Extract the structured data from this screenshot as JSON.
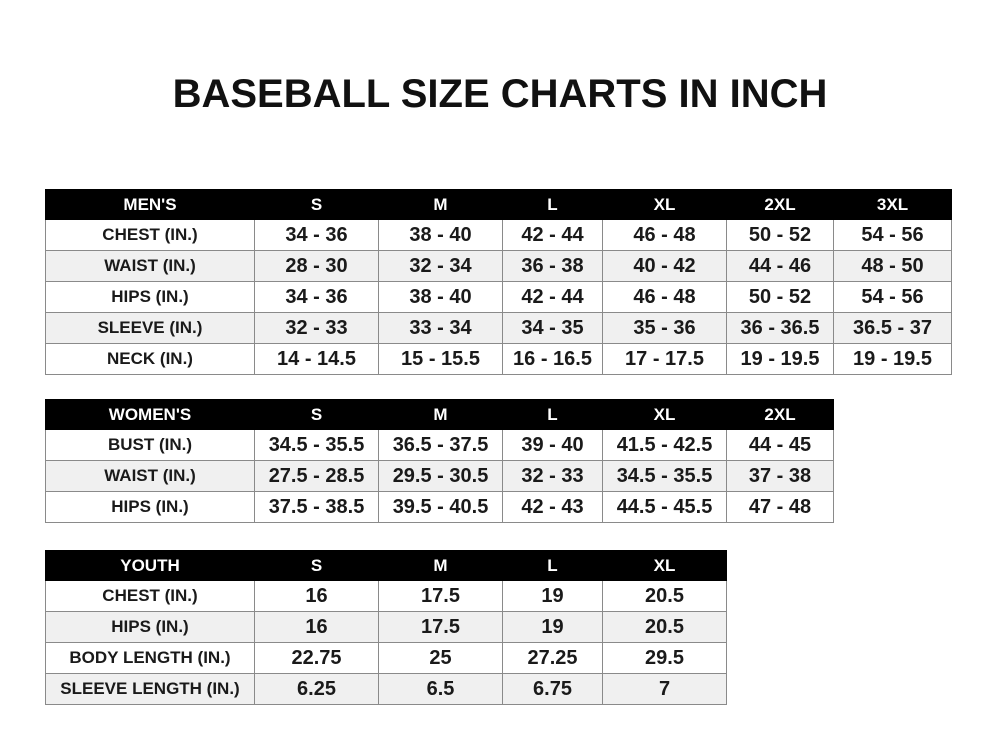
{
  "title": "BASEBALL SIZE CHARTS IN INCH",
  "mens": {
    "header": [
      "MEN'S",
      "S",
      "M",
      "L",
      "XL",
      "2XL",
      "3XL"
    ],
    "rows": [
      [
        "CHEST (IN.)",
        "34 - 36",
        "38 - 40",
        "42 - 44",
        "46 - 48",
        "50 - 52",
        "54 - 56"
      ],
      [
        "WAIST (IN.)",
        "28 - 30",
        "32 - 34",
        "36 - 38",
        "40 - 42",
        "44 - 46",
        "48 - 50"
      ],
      [
        "HIPS (IN.)",
        "34 - 36",
        "38 - 40",
        "42 - 44",
        "46 - 48",
        "50 - 52",
        "54 - 56"
      ],
      [
        "SLEEVE (IN.)",
        "32 - 33",
        "33 - 34",
        "34 - 35",
        "35 - 36",
        "36 - 36.5",
        "36.5 - 37"
      ],
      [
        "NECK (IN.)",
        "14 - 14.5",
        "15 - 15.5",
        "16 - 16.5",
        "17 - 17.5",
        "19 - 19.5",
        "19 - 19.5"
      ]
    ]
  },
  "womens": {
    "header": [
      "WOMEN'S",
      "S",
      "M",
      "L",
      "XL",
      "2XL"
    ],
    "rows": [
      [
        "BUST (IN.)",
        "34.5 - 35.5",
        "36.5 - 37.5",
        "39 - 40",
        "41.5 - 42.5",
        "44 - 45"
      ],
      [
        "WAIST (IN.)",
        "27.5 - 28.5",
        "29.5 - 30.5",
        "32 - 33",
        "34.5 - 35.5",
        "37 - 38"
      ],
      [
        "HIPS (IN.)",
        "37.5 - 38.5",
        "39.5 - 40.5",
        "42 - 43",
        "44.5 - 45.5",
        "47 - 48"
      ]
    ]
  },
  "youth": {
    "header": [
      "YOUTH",
      "S",
      "M",
      "L",
      "XL"
    ],
    "rows": [
      [
        "CHEST (IN.)",
        "16",
        "17.5",
        "19",
        "20.5"
      ],
      [
        "HIPS (IN.)",
        "16",
        "17.5",
        "19",
        "20.5"
      ],
      [
        "BODY LENGTH (IN.)",
        "22.75",
        "25",
        "27.25",
        "29.5"
      ],
      [
        "SLEEVE LENGTH (IN.)",
        "6.25",
        "6.5",
        "6.75",
        "7"
      ]
    ]
  }
}
